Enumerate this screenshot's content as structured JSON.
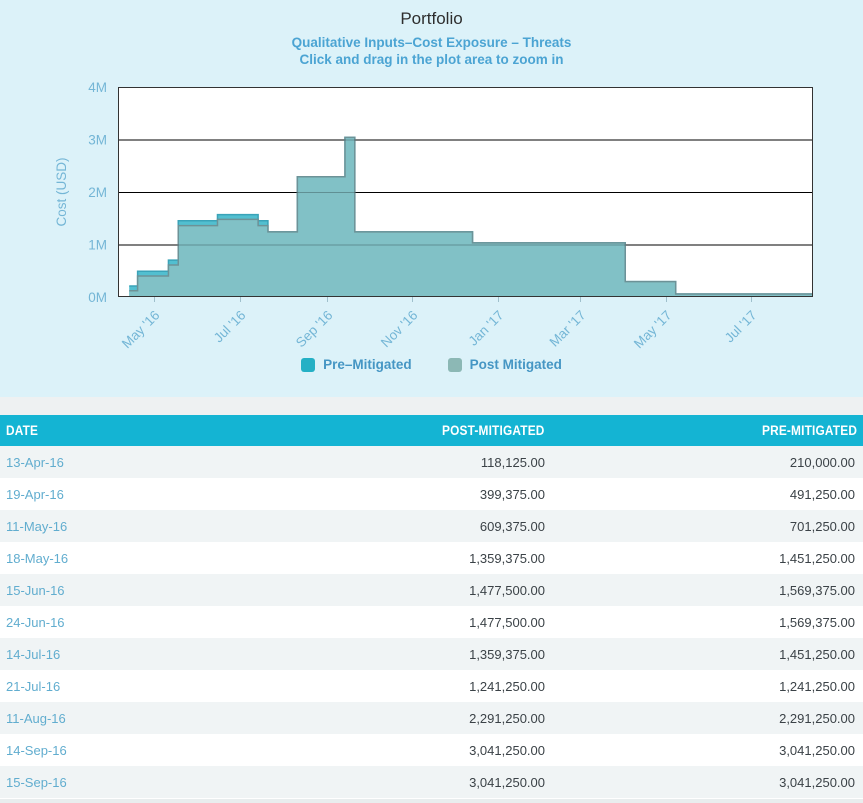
{
  "colors": {
    "panel_bg": "#dcf2f9",
    "header_bg": "#14b4d3",
    "row_alt_bg": "#f0f4f5",
    "date_link": "#61adcf",
    "value_text": "#3b4247",
    "axis_label": "#74b6d6",
    "subtitle_text": "#4ba4d3"
  },
  "chart_data": {
    "type": "area",
    "step": true,
    "title": "Portfolio",
    "subtitle": [
      "Qualitative Inputs–Cost Exposure – Threats",
      "Click and drag in the plot area to zoom in"
    ],
    "ylabel": "Cost (USD)",
    "yticks": [
      "0M",
      "1M",
      "2M",
      "3M",
      "4M"
    ],
    "ylim": [
      0,
      4000000
    ],
    "grid": true,
    "legend_position": "bottom",
    "x_domain": [
      "2016-04-05",
      "2017-08-14"
    ],
    "xticks": [
      {
        "date": "2016-05-01",
        "label": "May '16"
      },
      {
        "date": "2016-07-01",
        "label": "Jul '16"
      },
      {
        "date": "2016-09-01",
        "label": "Sep '16"
      },
      {
        "date": "2016-11-01",
        "label": "Nov '16"
      },
      {
        "date": "2017-01-01",
        "label": "Jan '17"
      },
      {
        "date": "2017-03-01",
        "label": "Mar '17"
      },
      {
        "date": "2017-05-01",
        "label": "May '17"
      },
      {
        "date": "2017-07-01",
        "label": "Jul '17"
      }
    ],
    "legend": [
      {
        "name": "Pre–Mitigated",
        "color": "#24b0c5"
      },
      {
        "name": "Post Mitigated",
        "color": "#8cb8b5"
      }
    ],
    "series": [
      {
        "name": "Pre–Mitigated",
        "fill": "#52bfd0",
        "line": "#3aa3b8",
        "points": [
          [
            "2016-04-13",
            210000
          ],
          [
            "2016-04-19",
            491250
          ],
          [
            "2016-05-11",
            701250
          ],
          [
            "2016-05-18",
            1451250
          ],
          [
            "2016-06-15",
            1569375
          ],
          [
            "2016-06-24",
            1569375
          ],
          [
            "2016-07-14",
            1451250
          ],
          [
            "2016-07-21",
            1241250
          ],
          [
            "2016-08-11",
            2291250
          ],
          [
            "2016-09-14",
            3041250
          ],
          [
            "2016-09-15",
            3041250
          ],
          [
            "2016-09-21",
            1241250
          ],
          [
            "2016-12-14",
            1031250
          ],
          [
            "2017-04-02",
            293750
          ],
          [
            "2017-05-08",
            56250
          ],
          [
            "2017-08-14",
            56250
          ]
        ]
      },
      {
        "name": "Post Mitigated",
        "fill": "#81c1c6",
        "line": "#6d9297",
        "points": [
          [
            "2016-04-13",
            118125
          ],
          [
            "2016-04-19",
            399375
          ],
          [
            "2016-05-11",
            609375
          ],
          [
            "2016-05-18",
            1359375
          ],
          [
            "2016-06-15",
            1477500
          ],
          [
            "2016-06-24",
            1477500
          ],
          [
            "2016-07-14",
            1359375
          ],
          [
            "2016-07-21",
            1241250
          ],
          [
            "2016-08-11",
            2291250
          ],
          [
            "2016-09-14",
            3041250
          ],
          [
            "2016-09-15",
            3041250
          ],
          [
            "2016-09-21",
            1241250
          ],
          [
            "2016-12-14",
            1031250
          ],
          [
            "2017-04-02",
            293750
          ],
          [
            "2017-05-08",
            56250
          ],
          [
            "2017-08-14",
            56250
          ]
        ]
      }
    ]
  },
  "table": {
    "columns": [
      "DATE",
      "POST-MITIGATED",
      "PRE-MITIGATED"
    ],
    "rows": [
      {
        "date": "13-Apr-16",
        "post": "118,125.00",
        "pre": "210,000.00"
      },
      {
        "date": "19-Apr-16",
        "post": "399,375.00",
        "pre": "491,250.00"
      },
      {
        "date": "11-May-16",
        "post": "609,375.00",
        "pre": "701,250.00"
      },
      {
        "date": "18-May-16",
        "post": "1,359,375.00",
        "pre": "1,451,250.00"
      },
      {
        "date": "15-Jun-16",
        "post": "1,477,500.00",
        "pre": "1,569,375.00"
      },
      {
        "date": "24-Jun-16",
        "post": "1,477,500.00",
        "pre": "1,569,375.00"
      },
      {
        "date": "14-Jul-16",
        "post": "1,359,375.00",
        "pre": "1,451,250.00"
      },
      {
        "date": "21-Jul-16",
        "post": "1,241,250.00",
        "pre": "1,241,250.00"
      },
      {
        "date": "11-Aug-16",
        "post": "2,291,250.00",
        "pre": "2,291,250.00"
      },
      {
        "date": "14-Sep-16",
        "post": "3,041,250.00",
        "pre": "3,041,250.00"
      },
      {
        "date": "15-Sep-16",
        "post": "3,041,250.00",
        "pre": "3,041,250.00"
      }
    ]
  }
}
